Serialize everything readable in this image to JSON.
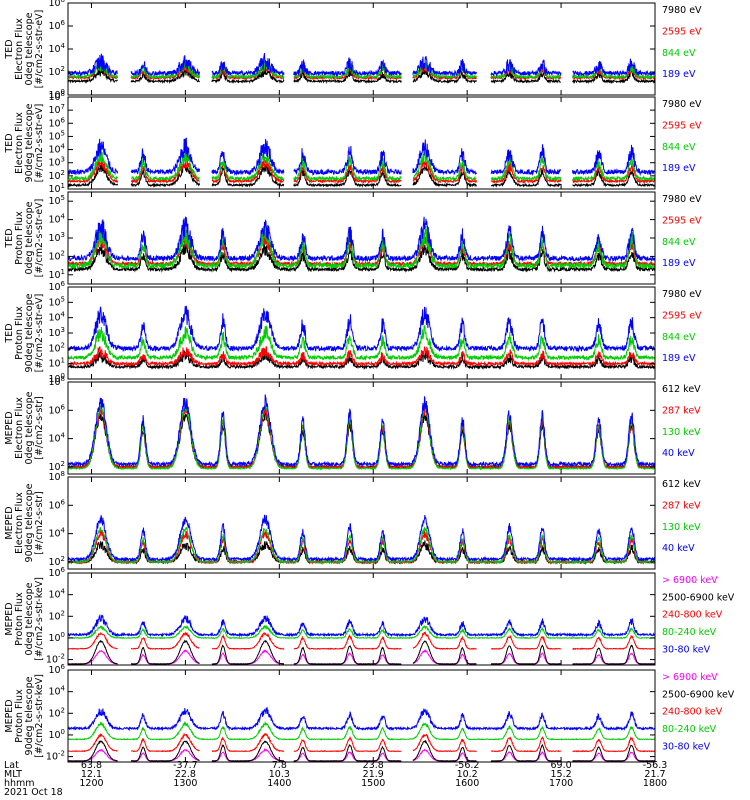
{
  "chart_data": {
    "type": "line",
    "x_tick_labels": [
      "1200",
      "1300",
      "1400",
      "1500",
      "1600",
      "1700",
      "1800"
    ],
    "x_hours": [
      12,
      13,
      14,
      15,
      16,
      17,
      18
    ],
    "x_range_hours": [
      11.75,
      18.0
    ],
    "footer": {
      "row_labels": [
        "Lat",
        "MLT",
        "hhmm",
        "2021 Oct 18"
      ],
      "lat": [
        "63.8",
        "-37.7",
        "7.8",
        "23.8",
        "-56.2",
        "69.0",
        "-56.3"
      ],
      "mlt": [
        "12.1",
        "22.8",
        "10.3",
        "21.9",
        "10.2",
        "15.2",
        "21.7"
      ]
    },
    "panels": [
      {
        "ylabel": [
          "TED",
          "Electron Flux",
          "0deg telescope",
          "[#/cm2-s-str-eV]"
        ],
        "ytick_exponents": [
          0,
          2,
          4,
          6,
          8
        ],
        "ylim_exp": [
          0,
          8
        ],
        "legend": [
          {
            "label": "7980 eV",
            "color": "#000000"
          },
          {
            "label": "2595 eV",
            "color": "#ff0000"
          },
          {
            "label": "844 eV",
            "color": "#00cc00"
          },
          {
            "label": "189 eV",
            "color": "#0000ff"
          }
        ],
        "series": [
          {
            "color": "#000000",
            "base": 1.2,
            "peak": 2.0,
            "noise": 0.6,
            "gap": true
          },
          {
            "color": "#ff0000",
            "base": 1.5,
            "peak": 2.4,
            "noise": 0.6,
            "gap": true
          },
          {
            "color": "#00cc00",
            "base": 1.6,
            "peak": 2.6,
            "noise": 0.8,
            "gap": true
          },
          {
            "color": "#0000ff",
            "base": 1.9,
            "peak": 2.9,
            "noise": 1.2,
            "gap": true
          }
        ]
      },
      {
        "ylabel": [
          "TED",
          "Electron Flux",
          "90deg telescope",
          "[#/cm2-s-str-eV]"
        ],
        "ytick_exponents": [
          1,
          2,
          3,
          4,
          5,
          6,
          7,
          8
        ],
        "ylim_exp": [
          1,
          8
        ],
        "legend": [
          {
            "label": "7980 eV",
            "color": "#000000"
          },
          {
            "label": "2595 eV",
            "color": "#ff0000"
          },
          {
            "label": "844 eV",
            "color": "#00cc00"
          },
          {
            "label": "189 eV",
            "color": "#0000ff"
          }
        ],
        "series": [
          {
            "color": "#000000",
            "base": 1.3,
            "peak": 2.6,
            "noise": 0.5,
            "gap": true
          },
          {
            "color": "#ff0000",
            "base": 1.6,
            "peak": 3.0,
            "noise": 0.6,
            "gap": true
          },
          {
            "color": "#00cc00",
            "base": 1.8,
            "peak": 3.5,
            "noise": 0.8,
            "gap": true
          },
          {
            "color": "#0000ff",
            "base": 2.3,
            "peak": 4.2,
            "noise": 1.2,
            "gap": true
          }
        ]
      },
      {
        "ylabel": [
          "TED",
          "Proton Flux",
          "0deg telescope",
          "[#/cm2-s-str-eV]"
        ],
        "ytick_exponents": [
          1,
          2,
          3,
          4,
          5
        ],
        "ylim_exp": [
          0.5,
          5.5
        ],
        "legend": [
          {
            "label": "7980 eV",
            "color": "#000000"
          },
          {
            "label": "2595 eV",
            "color": "#ff0000"
          },
          {
            "label": "844 eV",
            "color": "#00cc00"
          },
          {
            "label": "189 eV",
            "color": "#0000ff"
          }
        ],
        "series": [
          {
            "color": "#000000",
            "base": 1.3,
            "peak": 2.4,
            "noise": 0.6,
            "gap": false
          },
          {
            "color": "#ff0000",
            "base": 1.6,
            "peak": 2.9,
            "noise": 0.6,
            "gap": false
          },
          {
            "color": "#00cc00",
            "base": 1.5,
            "peak": 3.2,
            "noise": 0.9,
            "gap": false
          },
          {
            "color": "#0000ff",
            "base": 1.9,
            "peak": 3.6,
            "noise": 0.9,
            "gap": false
          }
        ]
      },
      {
        "ylabel": [
          "TED",
          "Proton Flux",
          "90deg telescope",
          "[#/cm2-s-str-eV]"
        ],
        "ytick_exponents": [
          0,
          1,
          2,
          3,
          4,
          5,
          6
        ],
        "ylim_exp": [
          0,
          6
        ],
        "legend": [
          {
            "label": "7980 eV",
            "color": "#000000"
          },
          {
            "label": "2595 eV",
            "color": "#ff0000"
          },
          {
            "label": "844 eV",
            "color": "#00cc00"
          },
          {
            "label": "189 eV",
            "color": "#0000ff"
          }
        ],
        "series": [
          {
            "color": "#000000",
            "base": 0.8,
            "peak": 1.5,
            "noise": 0.6,
            "gap": false
          },
          {
            "color": "#ff0000",
            "base": 1.0,
            "peak": 1.8,
            "noise": 0.6,
            "gap": false
          },
          {
            "color": "#00cc00",
            "base": 1.4,
            "peak": 3.0,
            "noise": 0.8,
            "gap": false
          },
          {
            "color": "#0000ff",
            "base": 2.0,
            "peak": 4.2,
            "noise": 1.0,
            "gap": false
          }
        ]
      },
      {
        "ylabel": [
          "MEPED",
          "Electron Flux",
          "0deg telescope",
          "[#/cm2-s-str]"
        ],
        "ytick_exponents": [
          2,
          4,
          6,
          8
        ],
        "ylim_exp": [
          1.5,
          8
        ],
        "legend": [
          {
            "label": "612 keV",
            "color": "#000000"
          },
          {
            "label": "287 keV",
            "color": "#ff0000"
          },
          {
            "label": "130 keV",
            "color": "#00cc00"
          },
          {
            "label": "40 keV",
            "color": "#0000ff"
          }
        ],
        "series": [
          {
            "color": "#000000",
            "base": 2.0,
            "peak": 5.6,
            "noise": 0.5,
            "gap": false
          },
          {
            "color": "#ff0000",
            "base": 2.0,
            "peak": 6.0,
            "noise": 0.5,
            "gap": false
          },
          {
            "color": "#00cc00",
            "base": 1.9,
            "peak": 6.2,
            "noise": 0.3,
            "gap": false
          },
          {
            "color": "#0000ff",
            "base": 2.2,
            "peak": 6.6,
            "noise": 0.8,
            "gap": false
          }
        ]
      },
      {
        "ylabel": [
          "MEPED",
          "Electron Flux",
          "90deg telescope",
          "[#/cm2-s-str]"
        ],
        "ytick_exponents": [
          2,
          4,
          6,
          8
        ],
        "ylim_exp": [
          1.5,
          8
        ],
        "legend": [
          {
            "label": "612 keV",
            "color": "#000000"
          },
          {
            "label": "287 keV",
            "color": "#ff0000"
          },
          {
            "label": "130 keV",
            "color": "#00cc00"
          },
          {
            "label": "40 keV",
            "color": "#0000ff"
          }
        ],
        "series": [
          {
            "color": "#000000",
            "base": 2.0,
            "peak": 3.2,
            "noise": 0.5,
            "gap": false
          },
          {
            "color": "#ff0000",
            "base": 2.0,
            "peak": 4.0,
            "noise": 0.5,
            "gap": false
          },
          {
            "color": "#00cc00",
            "base": 2.0,
            "peak": 4.3,
            "noise": 0.3,
            "gap": false
          },
          {
            "color": "#0000ff",
            "base": 2.2,
            "peak": 5.0,
            "noise": 0.6,
            "gap": false
          }
        ]
      },
      {
        "ylabel": [
          "MEPED",
          "Proton Flux",
          "0deg telescope",
          "[#/cm2-s-str-keV]"
        ],
        "ytick_exponents": [
          -2,
          0,
          2,
          4,
          6
        ],
        "ylim_exp": [
          -2.5,
          6
        ],
        "legend": [
          {
            "label": "> 6900 keV",
            "color": "#ff00ff"
          },
          {
            "label": "2500-6900 keV",
            "color": "#000000"
          },
          {
            "label": "240-800 keV",
            "color": "#ff0000"
          },
          {
            "label": "80-240 keV",
            "color": "#00cc00"
          },
          {
            "label": "30-80 keV",
            "color": "#0000ff"
          }
        ],
        "series": [
          {
            "color": "#ff00ff",
            "base": -2.4,
            "peak": -1.2,
            "noise": 0.1,
            "gap": true
          },
          {
            "color": "#000000",
            "base": -2.4,
            "peak": -0.3,
            "noise": 0.1,
            "gap": true
          },
          {
            "color": "#ff0000",
            "base": -1.0,
            "peak": 0.4,
            "noise": 0.2,
            "gap": true
          },
          {
            "color": "#00cc00",
            "base": 0.0,
            "peak": 1.0,
            "noise": 0.2,
            "gap": false
          },
          {
            "color": "#0000ff",
            "base": 0.3,
            "peak": 1.8,
            "noise": 0.6,
            "gap": false
          }
        ]
      },
      {
        "ylabel": [
          "MEPED",
          "Proton Flux",
          "90deg telescope",
          "[#/cm2-s-str-keV]"
        ],
        "ytick_exponents": [
          -2,
          0,
          2,
          4,
          6
        ],
        "ylim_exp": [
          -2.5,
          6
        ],
        "legend": [
          {
            "label": "> 6900 keV",
            "color": "#ff00ff"
          },
          {
            "label": "2500-6900 keV",
            "color": "#000000"
          },
          {
            "label": "240-800 keV",
            "color": "#ff0000"
          },
          {
            "label": "80-240 keV",
            "color": "#00cc00"
          },
          {
            "label": "30-80 keV",
            "color": "#0000ff"
          }
        ],
        "series": [
          {
            "color": "#ff00ff",
            "base": -2.4,
            "peak": -1.4,
            "noise": 0.1,
            "gap": true
          },
          {
            "color": "#000000",
            "base": -2.4,
            "peak": -0.6,
            "noise": 0.1,
            "gap": true
          },
          {
            "color": "#ff0000",
            "base": -1.5,
            "peak": 0.0,
            "noise": 0.2,
            "gap": true
          },
          {
            "color": "#00cc00",
            "base": -0.4,
            "peak": 1.0,
            "noise": 0.2,
            "gap": false
          },
          {
            "color": "#0000ff",
            "base": 0.6,
            "peak": 2.2,
            "noise": 0.6,
            "gap": false
          }
        ]
      }
    ]
  }
}
